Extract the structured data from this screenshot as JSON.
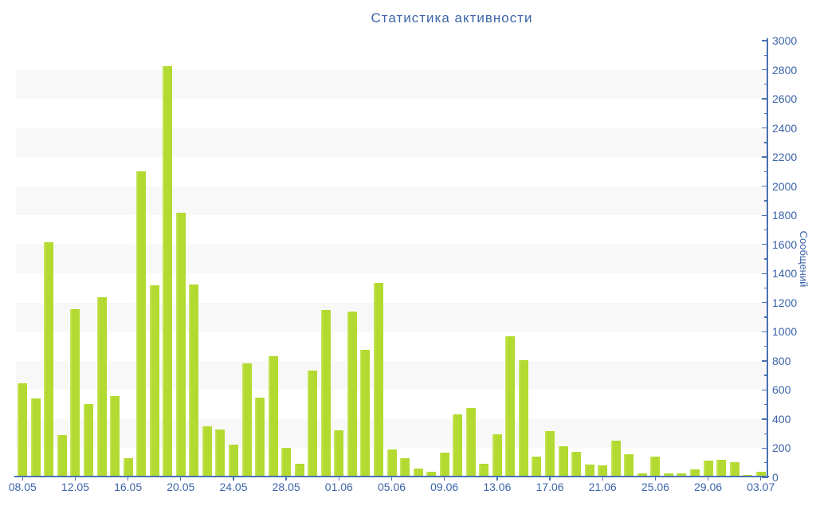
{
  "colors": {
    "bar": "#b2da30",
    "bar_highlight": "#c6e45c",
    "axis_line": "#4a72b0",
    "text": "#3d64a8",
    "stripe": "#f8f8f8",
    "background": "#ffffff"
  },
  "chart_data": {
    "type": "bar",
    "title": "Статистика активности",
    "xlabel": "",
    "ylabel": "Сообщений",
    "ylim": [
      0,
      3000
    ],
    "y_tick_step": 200,
    "y_minor_tick_step": 100,
    "y_tick_labels": [
      "0",
      "200",
      "400",
      "600",
      "800",
      "1000",
      "1200",
      "1400",
      "1600",
      "1800",
      "2000",
      "2200",
      "2400",
      "2600",
      "2800",
      "3000"
    ],
    "y_axis_side": "right",
    "grid": "alternating horizontal bands, 200 units tall",
    "legend": "none",
    "x_tick_every": 4,
    "x_tick_labels": [
      "08.05",
      "12.05",
      "16.05",
      "20.05",
      "24.05",
      "28.05",
      "01.06",
      "05.06",
      "09.06",
      "13.06",
      "17.06",
      "21.06",
      "25.06",
      "29.06",
      "03.07"
    ],
    "x": [
      "08.05",
      "09.05",
      "10.05",
      "11.05",
      "12.05",
      "13.05",
      "14.05",
      "15.05",
      "16.05",
      "17.05",
      "18.05",
      "19.05",
      "20.05",
      "21.05",
      "22.05",
      "23.05",
      "24.05",
      "25.05",
      "26.05",
      "27.05",
      "28.05",
      "29.05",
      "30.05",
      "31.05",
      "01.06",
      "02.06",
      "03.06",
      "04.06",
      "05.06",
      "06.06",
      "07.06",
      "08.06",
      "09.06",
      "10.06",
      "11.06",
      "12.06",
      "13.06",
      "14.06",
      "15.06",
      "16.06",
      "17.06",
      "18.06",
      "19.06",
      "20.06",
      "21.06",
      "22.06",
      "23.06",
      "24.06",
      "25.06",
      "26.06",
      "27.06",
      "28.06",
      "29.06",
      "30.06",
      "01.07",
      "02.07",
      "03.07"
    ],
    "values": [
      645,
      540,
      1615,
      290,
      1155,
      505,
      1240,
      560,
      130,
      2100,
      1320,
      2825,
      1820,
      1325,
      350,
      330,
      225,
      785,
      545,
      830,
      200,
      95,
      735,
      1150,
      325,
      1140,
      875,
      1335,
      190,
      130,
      60,
      40,
      170,
      430,
      475,
      95,
      295,
      970,
      805,
      145,
      315,
      215,
      175,
      85,
      80,
      250,
      160,
      25,
      145,
      30,
      25,
      55,
      115,
      120,
      105,
      15,
      40
    ]
  }
}
